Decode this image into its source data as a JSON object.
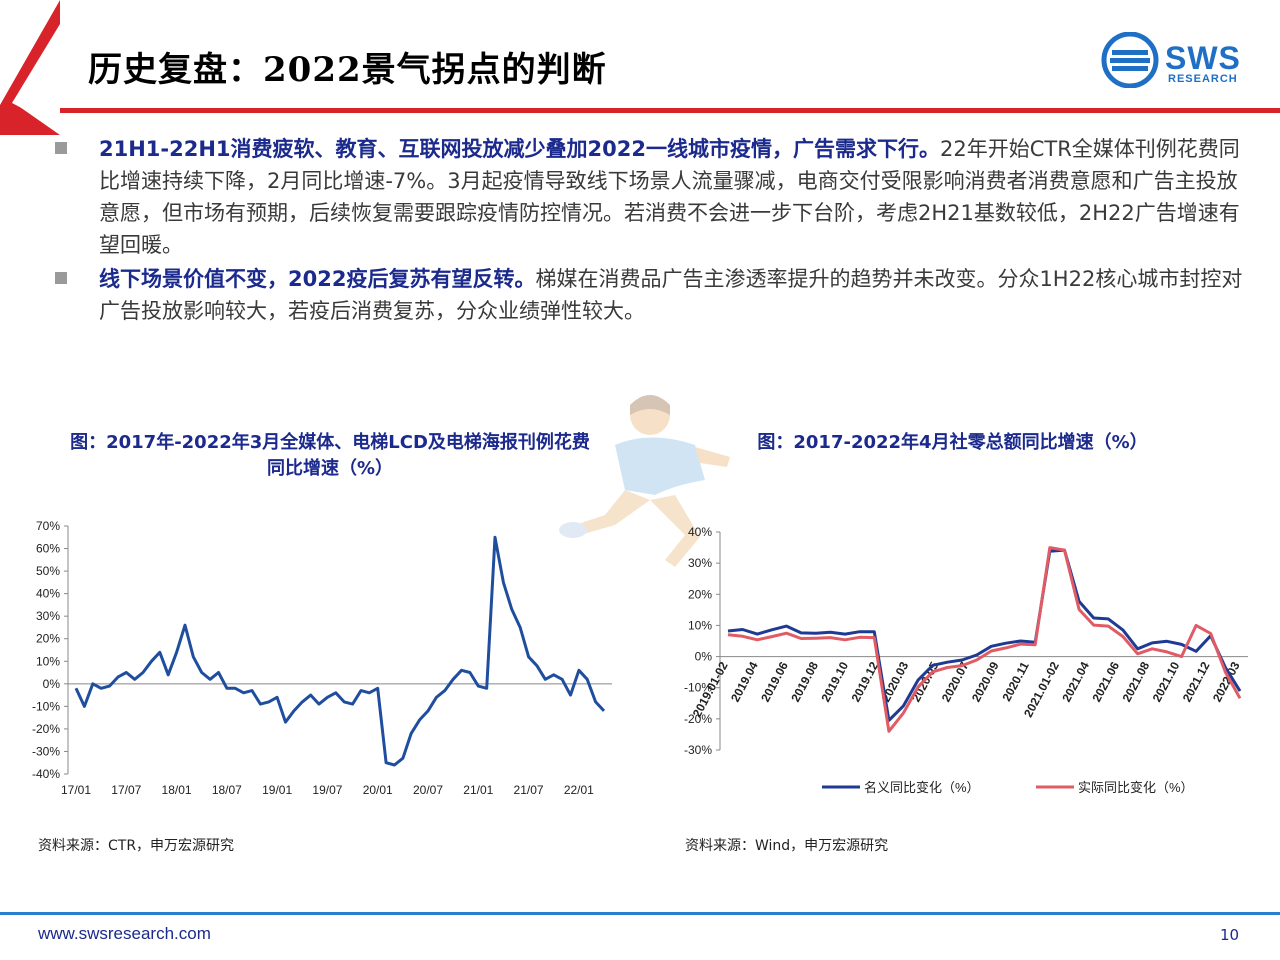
{
  "header": {
    "title": "历史复盘：2022景气拐点的判断",
    "logo_text": "SWS",
    "logo_sub": "RESEARCH"
  },
  "bullets": [
    {
      "bold": "21H1-22H1消费疲软、教育、互联网投放减少叠加2022一线城市疫情，广告需求下行。",
      "text": "22年开始CTR全媒体刊例花费同比增速持续下降，2月同比增速-7%。3月起疫情导致线下场景人流量骤减，电商交付受限影响消费者消费意愿和广告主投放意愿，但市场有预期，后续恢复需要跟踪疫情防控情况。若消费不会进一步下台阶，考虑2H21基数较低，2H22广告增速有望回暖。"
    },
    {
      "bold": "线下场景价值不变，2022疫后复苏有望反转。",
      "text": "梯媒在消费品广告主渗透率提升的趋势并未改变。分众1H22核心城市封控对广告投放影响较大，若疫后消费复苏，分众业绩弹性较大。"
    }
  ],
  "chart_data": [
    {
      "type": "line",
      "title": "图：2017年-2022年3月全媒体、电梯LCD及电梯海报刊例花费同比增速（%）",
      "title_line1": "图：2017年-2022年3月全媒体、电梯LCD及电梯海报刊例花费",
      "title_line2": "同比增速（%）",
      "y_ticks": [
        "70%",
        "60%",
        "50%",
        "40%",
        "30%",
        "20%",
        "10%",
        "0%",
        "-10%",
        "-20%",
        "-30%",
        "-40%"
      ],
      "x_ticks": [
        "17/01",
        "17/07",
        "18/01",
        "18/07",
        "19/01",
        "19/07",
        "20/01",
        "20/07",
        "21/01",
        "21/07",
        "22/01"
      ],
      "ylim": [
        -40,
        70
      ],
      "color": "#1f4e9e",
      "series": [
        {
          "values": [
            -2,
            -10,
            0,
            -2,
            -1,
            3,
            5,
            2,
            5,
            10,
            14,
            4,
            14,
            26,
            12,
            5,
            2,
            5,
            -2,
            -2,
            -4,
            -3,
            -9,
            -8,
            -6,
            -17,
            -12,
            -8,
            -5,
            -9,
            -6,
            -4,
            -8,
            -9,
            -3,
            -4,
            -2,
            -35,
            -36,
            -33,
            -22,
            -16,
            -12,
            -6,
            -3,
            2,
            6,
            5,
            -1,
            -2,
            65,
            45,
            33,
            25,
            12,
            8,
            2,
            4,
            2,
            -5,
            6,
            2,
            -8,
            -12
          ]
        }
      ],
      "source": "资料来源：CTR，申万宏源研究"
    },
    {
      "type": "line",
      "title": "图：2017-2022年4月社零总额同比增速（%）",
      "y_ticks": [
        "40%",
        "30%",
        "20%",
        "10%",
        "0%",
        "-10%",
        "-20%",
        "-30%"
      ],
      "x_ticks": [
        "2019.01-02",
        "2019.04",
        "2019.06",
        "2019.08",
        "2019.10",
        "2019.12",
        "2020.03",
        "2020.05",
        "2020.07",
        "2020.09",
        "2020.11",
        "2021.01-02",
        "2021.04",
        "2021.06",
        "2021.08",
        "2021.10",
        "2021.12",
        "2022.03"
      ],
      "ylim": [
        -30,
        40
      ],
      "series": [
        {
          "name": "名义同比变化（%）",
          "color": "#1f3a93",
          "values": [
            8.2,
            8.7,
            7.2,
            8.6,
            9.8,
            7.6,
            7.5,
            7.8,
            7.2,
            8.0,
            8.0,
            -20.5,
            -15.8,
            -7.5,
            -2.8,
            -1.8,
            -1.1,
            0.5,
            3.3,
            4.3,
            5.0,
            4.6,
            33.8,
            34.2,
            17.7,
            12.4,
            12.1,
            8.5,
            2.5,
            4.4,
            4.9,
            3.9,
            1.7,
            6.7,
            -3.5,
            -11.1
          ]
        },
        {
          "name": "实际同比变化（%）",
          "color": "#e15b64",
          "values": [
            7.0,
            6.5,
            5.4,
            6.4,
            7.5,
            5.8,
            5.9,
            6.1,
            5.4,
            6.2,
            6.1,
            -24.0,
            -18.1,
            -9.7,
            -4.9,
            -3.5,
            -2.9,
            -1.1,
            1.8,
            2.8,
            4.0,
            3.8,
            35.0,
            34.2,
            15.1,
            10.1,
            9.8,
            6.4,
            0.9,
            2.5,
            1.5,
            0.0,
            10.0,
            7.4,
            -5.0,
            -13.4
          ]
        }
      ],
      "source": "资料来源：Wind，申万宏源研究"
    }
  ],
  "footer": {
    "url": "www.swsresearch.com",
    "page": "10"
  }
}
